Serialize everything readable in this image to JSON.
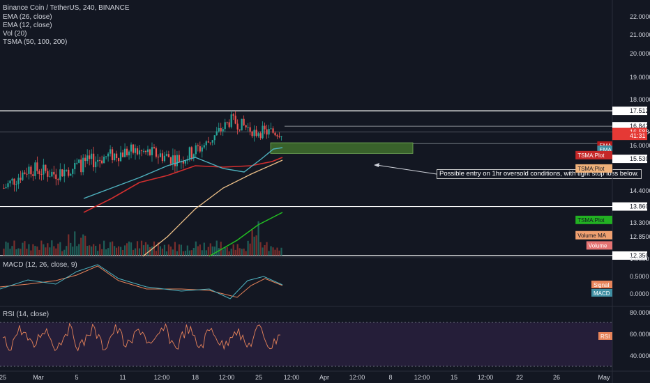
{
  "header": {
    "title": "Binance Coin / TetherUS, 240, BINANCE",
    "studies": [
      "EMA (26, close)",
      "EMA (12, close)",
      "Vol (20)",
      "TSMA (50, 100, 200)"
    ]
  },
  "annotation": "Possible entry on 1hr oversold conditions, with tight stop loss below.",
  "colors": {
    "background": "#131722",
    "candle_up": "#26a69a",
    "candle_down": "#ef5350",
    "ema26": "#d32f2f",
    "ema12": "#4fb3c0",
    "tsma_orange": "#f0c38a",
    "tsma_green": "#22c022",
    "entry_box": "#3e6b2c",
    "rsi_band": "#2a2040"
  },
  "price_axis": {
    "ticks": [
      "22.0000",
      "21.0000",
      "20.0000",
      "19.0000",
      "18.0000",
      "16.0000",
      "14.4000",
      "13.3000",
      "12.8500"
    ],
    "badges": [
      {
        "text": "17.5120",
        "value": 17.512,
        "bg": "#ffffff",
        "fg": "#131722"
      },
      {
        "text": "16.8421",
        "value": 16.8421,
        "bg": "#ffffff",
        "fg": "#131722"
      },
      {
        "text": "16.5884",
        "value": 16.5884,
        "bg": "#e53935",
        "fg": "#ffffff"
      },
      {
        "text": "41:31",
        "value": 16.42,
        "bg": "#e53935",
        "fg": "#ffffff"
      },
      {
        "text": "15.5301",
        "value": 15.5301,
        "bg": "#ffffff",
        "fg": "#131722"
      },
      {
        "text": "13.8607",
        "value": 13.8607,
        "bg": "#ffffff",
        "fg": "#131722"
      },
      {
        "text": "12.3500",
        "value": 12.35,
        "bg": "#ffffff",
        "fg": "#131722"
      }
    ],
    "labels": [
      {
        "text": "EMA",
        "value": 16.0,
        "bg": "#b71c1c",
        "fg": "#ffffff"
      },
      {
        "text": "EMA",
        "value": 15.85,
        "bg": "#3f8fa3",
        "fg": "#ffffff"
      },
      {
        "text": "TSMA:Plot",
        "value": 15.66,
        "bg": "#c62828",
        "fg": "#ffffff"
      },
      {
        "text": "TSMA:Plot",
        "value": 15.19,
        "bg": "#f0b27a",
        "fg": "#131722"
      },
      {
        "text": "TSMA:Plot",
        "value": 13.4,
        "bg": "#22b022",
        "fg": "#131722"
      },
      {
        "text": "Volume MA",
        "value": 12.9,
        "bg": "#f0a070",
        "fg": "#131722"
      },
      {
        "text": "Volume",
        "value": 12.62,
        "bg": "#e57373",
        "fg": "#ffffff"
      }
    ]
  },
  "macd": {
    "title": "MACD (12, 26, close, 9)",
    "ticks": [
      "1.0000",
      "0.5000",
      "0.0000"
    ],
    "labels": [
      {
        "text": "Signal",
        "bg": "#e8845a"
      },
      {
        "text": "MACD",
        "bg": "#3f8fa3"
      }
    ]
  },
  "rsi": {
    "title": "RSI (14, close)",
    "ticks": [
      "80.0000",
      "60.0000",
      "40.0000"
    ],
    "label": {
      "text": "RSI",
      "bg": "#e8845a"
    }
  },
  "time_axis": {
    "ticks": [
      "25",
      "Mar",
      "5",
      "11",
      "12:00",
      "18",
      "12:00",
      "25",
      "12:00",
      "Apr",
      "12:00",
      "8",
      "12:00",
      "15",
      "12:00",
      "22",
      "26",
      "May"
    ]
  },
  "chart_data": {
    "type": "candlestick",
    "y_range": [
      12.2,
      22.6
    ],
    "horizontal_levels": [
      17.512,
      13.8607,
      12.35
    ],
    "entry_zone": [
      15.72,
      16.12
    ],
    "approx_close_path": [
      14.5,
      15.2,
      15.0,
      15.3,
      15.6,
      15.8,
      15.7,
      15.5,
      16.05,
      17.1,
      16.6,
      16.58
    ]
  }
}
